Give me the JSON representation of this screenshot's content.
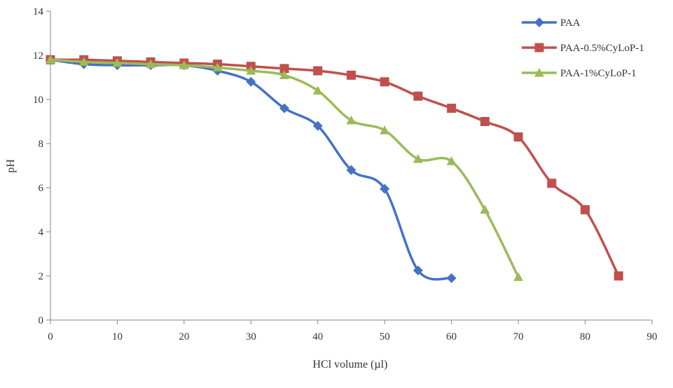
{
  "chart_data": {
    "type": "line",
    "title": "",
    "xlabel": "HCl volume (µl)",
    "ylabel": "pH",
    "xlim": [
      0,
      90
    ],
    "ylim": [
      0,
      14
    ],
    "x_ticks": [
      0,
      10,
      20,
      30,
      40,
      50,
      60,
      70,
      80,
      90
    ],
    "y_ticks": [
      0,
      2,
      4,
      6,
      8,
      10,
      12,
      14
    ],
    "grid": false,
    "legend_position": "top-right",
    "series": [
      {
        "name": "PAA",
        "color": "#4472C4",
        "marker": "diamond",
        "x": [
          0,
          5,
          10,
          15,
          20,
          25,
          30,
          35,
          40,
          45,
          50,
          55,
          60
        ],
        "y": [
          11.8,
          11.6,
          11.55,
          11.55,
          11.55,
          11.3,
          10.8,
          9.6,
          8.8,
          6.8,
          5.95,
          2.25,
          1.9
        ]
      },
      {
        "name": "PAA-0.5%CyLoP-1",
        "color": "#C0504D",
        "marker": "square",
        "x": [
          0,
          5,
          10,
          15,
          20,
          25,
          30,
          35,
          40,
          45,
          50,
          55,
          60,
          65,
          70,
          75,
          80,
          85
        ],
        "y": [
          11.8,
          11.8,
          11.75,
          11.7,
          11.65,
          11.6,
          11.5,
          11.4,
          11.3,
          11.1,
          10.8,
          10.15,
          9.6,
          9.0,
          8.3,
          6.2,
          5.0,
          2.0
        ]
      },
      {
        "name": "PAA-1%CyLoP-1",
        "color": "#9BBB59",
        "marker": "triangle",
        "x": [
          0,
          5,
          10,
          15,
          20,
          25,
          30,
          35,
          40,
          45,
          50,
          55,
          60,
          65,
          70
        ],
        "y": [
          11.8,
          11.7,
          11.65,
          11.6,
          11.55,
          11.45,
          11.3,
          11.1,
          10.4,
          9.05,
          8.6,
          7.3,
          7.2,
          5.0,
          1.95
        ]
      }
    ]
  }
}
